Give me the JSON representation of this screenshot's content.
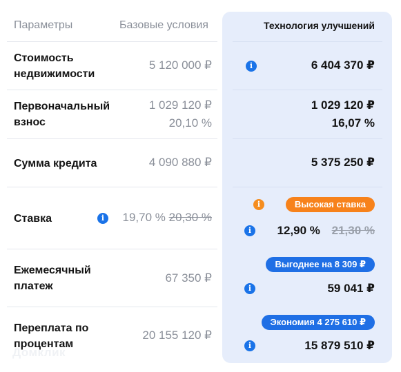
{
  "header": {
    "params": "Параметры",
    "base": "Базовые условия",
    "tech": "Технология улучшений"
  },
  "rows": {
    "property": {
      "label_line1": "Стоимость",
      "label_line2": "недвижимости",
      "base": "5 120 000 ₽",
      "tech": "6 404 370 ₽"
    },
    "down_payment": {
      "label_line1": "Первоначальный",
      "label_line2": "взнос",
      "base_amount": "1 029 120 ₽",
      "base_percent": "20,10 %",
      "tech_amount": "1 029 120 ₽",
      "tech_percent": "16,07 %"
    },
    "loan": {
      "label": "Сумма кредита",
      "base": "4 090 880 ₽",
      "tech": "5 375 250 ₽"
    },
    "rate": {
      "label": "Ставка",
      "base_current": "19,70 %",
      "base_old": "20,30 %",
      "badge": "Высокая ставка",
      "tech_current": "12,90 %",
      "tech_old": "21,30 %"
    },
    "monthly": {
      "label_line1": "Ежемесячный",
      "label_line2": "платеж",
      "base": "67 350 ₽",
      "badge": "Выгоднее на 8 309 ₽",
      "tech": "59 041 ₽"
    },
    "overpay": {
      "label_line1": "Переплата по",
      "label_line2": "процентам",
      "base": "20 155 120 ₽",
      "badge": "Экономия 4 275 610 ₽",
      "tech": "15 879 510 ₽"
    }
  },
  "icons": {
    "info": "info-icon",
    "info_glyph": "i"
  },
  "colors": {
    "accent_blue": "#1f6fe5",
    "warning_orange": "#f7821b",
    "panel_bg": "#e6edfb"
  },
  "watermark": "Домклик"
}
